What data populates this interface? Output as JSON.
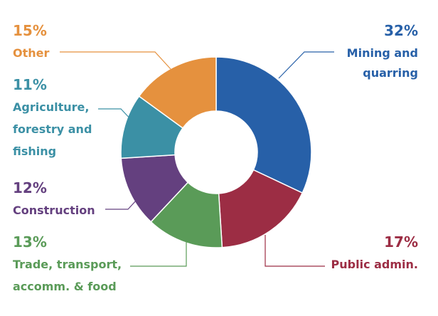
{
  "chart_data": {
    "type": "pie",
    "variant": "donut",
    "slices": [
      {
        "pct": "32%",
        "value": 32,
        "label_lines": [
          "Mining and",
          "quarring"
        ],
        "color": "#2760a8"
      },
      {
        "pct": "17%",
        "value": 17,
        "label_lines": [
          "Public admin."
        ],
        "color": "#9c2d44"
      },
      {
        "pct": "13%",
        "value": 13,
        "label_lines": [
          "Trade, transport,",
          "accomm. & food"
        ],
        "color": "#5a9b58"
      },
      {
        "pct": "12%",
        "value": 12,
        "label_lines": [
          "Construction"
        ],
        "color": "#64407f"
      },
      {
        "pct": "11%",
        "value": 11,
        "label_lines": [
          "Agriculture,",
          "forestry and",
          "fishing"
        ],
        "color": "#3b90a5"
      },
      {
        "pct": "15%",
        "value": 15,
        "label_lines": [
          "Other"
        ],
        "color": "#e5913e"
      }
    ]
  }
}
